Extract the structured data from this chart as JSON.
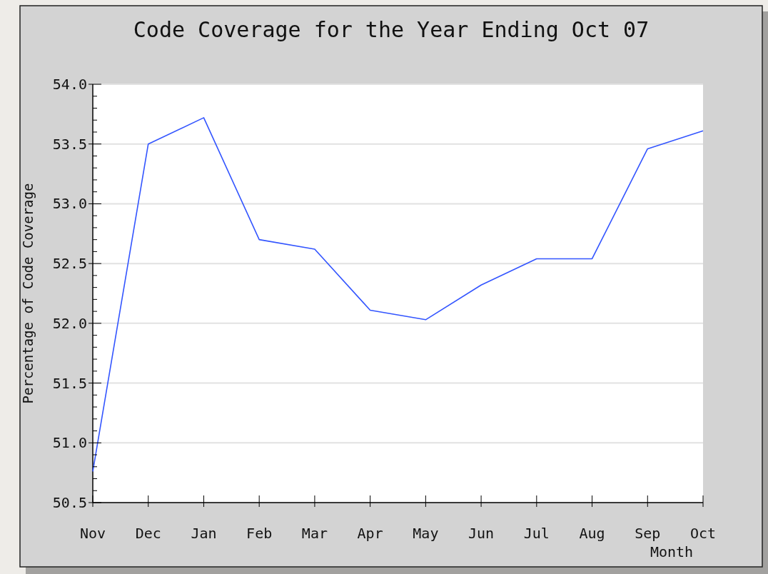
{
  "chart_data": {
    "type": "line",
    "title": "Code Coverage for the Year Ending Oct 07",
    "xlabel": "Month",
    "ylabel": "Percentage of Code Coverage",
    "categories": [
      "Nov",
      "Dec",
      "Jan",
      "Feb",
      "Mar",
      "Apr",
      "May",
      "Jun",
      "Jul",
      "Aug",
      "Sep",
      "Oct"
    ],
    "series": [
      {
        "color": "#3355ff",
        "values": [
          50.76,
          53.5,
          53.72,
          52.7,
          52.62,
          52.11,
          52.03,
          52.32,
          52.54,
          52.54,
          53.46,
          53.61
        ]
      }
    ],
    "ylim": [
      50.5,
      54.0
    ],
    "yticks": [
      {
        "value": 50.5,
        "label": "50.5"
      },
      {
        "value": 51,
        "label": "51.0"
      },
      {
        "value": 51.5,
        "label": "51.5"
      },
      {
        "value": 52,
        "label": "52.0"
      },
      {
        "value": 52.5,
        "label": "52.5"
      },
      {
        "value": 53,
        "label": "53.0"
      },
      {
        "value": 53.5,
        "label": "53.5"
      },
      {
        "value": 54,
        "label": "54.0"
      }
    ],
    "grid": "y",
    "marker": "none",
    "line_style": "solid"
  }
}
